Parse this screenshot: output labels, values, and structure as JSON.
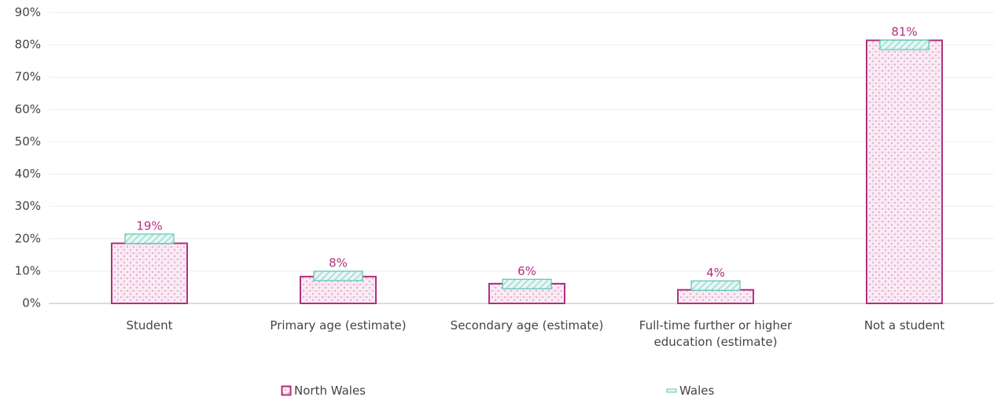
{
  "chart_data": {
    "type": "bar",
    "categories": [
      "Student",
      "Primary age (estimate)",
      "Secondary age (estimate)",
      "Full-time further or higher education (estimate)",
      "Not a student"
    ],
    "series": [
      {
        "name": "North Wales",
        "color": "#b0307f",
        "style": "bar",
        "values": [
          18.6,
          8.3,
          6.1,
          4.2,
          81.4
        ],
        "value_labels": [
          "19%",
          "8%",
          "6%",
          "4%",
          "81%"
        ]
      },
      {
        "name": "Wales",
        "color": "#5cc6b5",
        "style": "marker",
        "values": [
          20,
          8.5,
          6,
          5.5,
          80
        ]
      }
    ],
    "ylim": [
      0,
      90
    ],
    "yticks": [
      {
        "value": 0,
        "label": "0%"
      },
      {
        "value": 10,
        "label": "10%"
      },
      {
        "value": 20,
        "label": "20%"
      },
      {
        "value": 30,
        "label": "30%"
      },
      {
        "value": 40,
        "label": "40%"
      },
      {
        "value": 50,
        "label": "50%"
      },
      {
        "value": 60,
        "label": "60%"
      },
      {
        "value": 70,
        "label": "70%"
      },
      {
        "value": 80,
        "label": "80%"
      },
      {
        "value": 90,
        "label": "90%"
      }
    ],
    "grid": true
  }
}
